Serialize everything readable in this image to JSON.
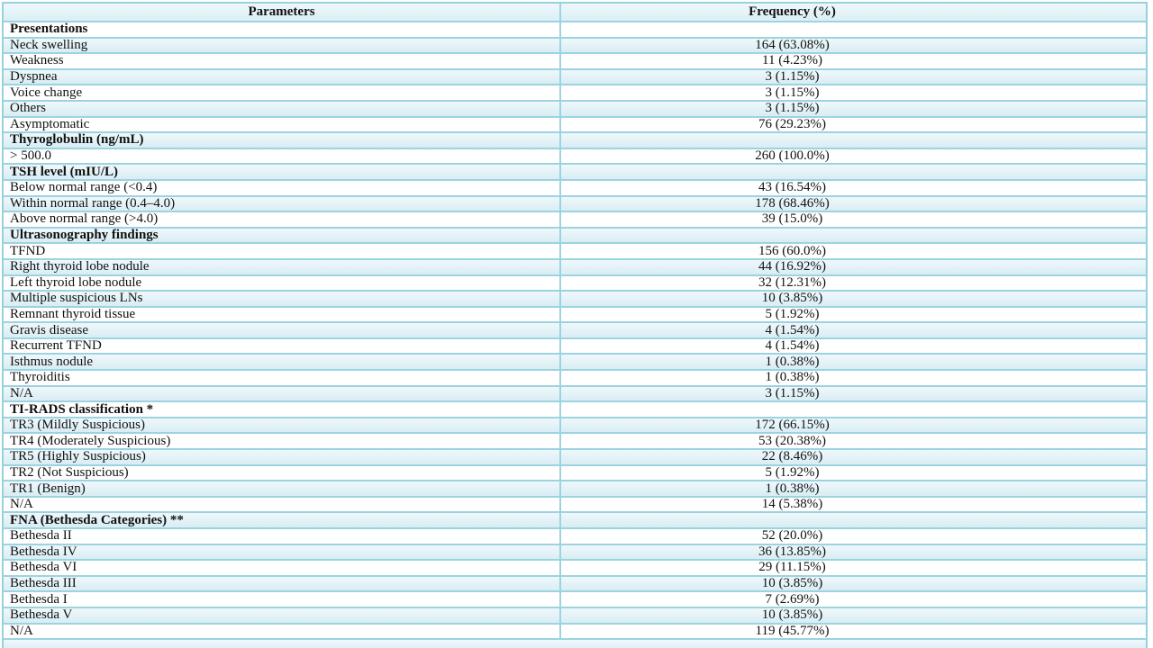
{
  "table": {
    "header": {
      "parameters": "Parameters",
      "frequency": "Frequency (%)"
    },
    "rows": [
      {
        "parameter": "Presentations",
        "frequency": "",
        "section": true
      },
      {
        "parameter": "Neck swelling",
        "frequency": "164 (63.08%)",
        "section": false
      },
      {
        "parameter": "Weakness",
        "frequency": "11 (4.23%)",
        "section": false
      },
      {
        "parameter": "Dyspnea",
        "frequency": "3 (1.15%)",
        "section": false
      },
      {
        "parameter": "Voice change",
        "frequency": "3 (1.15%)",
        "section": false
      },
      {
        "parameter": "Others",
        "frequency": "3 (1.15%)",
        "section": false
      },
      {
        "parameter": "Asymptomatic",
        "frequency": "76 (29.23%)",
        "section": false
      },
      {
        "parameter": "Thyroglobulin (ng/mL)",
        "frequency": "",
        "section": true
      },
      {
        "parameter": "> 500.0",
        "frequency": "260 (100.0%)",
        "section": false
      },
      {
        "parameter": "TSH level (mIU/L)",
        "frequency": "",
        "section": true
      },
      {
        "parameter": "Below normal range (<0.4)",
        "frequency": "43 (16.54%)",
        "section": false
      },
      {
        "parameter": "Within normal range (0.4–4.0)",
        "frequency": "178 (68.46%)",
        "section": false
      },
      {
        "parameter": "Above normal range (>4.0)",
        "frequency": "39 (15.0%)",
        "section": false
      },
      {
        "parameter": "Ultrasonography findings",
        "frequency": "",
        "section": true
      },
      {
        "parameter": "TFND",
        "frequency": "156 (60.0%)",
        "section": false
      },
      {
        "parameter": "Right thyroid lobe nodule",
        "frequency": "44 (16.92%)",
        "section": false
      },
      {
        "parameter": "Left thyroid lobe nodule",
        "frequency": "32 (12.31%)",
        "section": false
      },
      {
        "parameter": "Multiple suspicious LNs",
        "frequency": "10 (3.85%)",
        "section": false
      },
      {
        "parameter": "Remnant thyroid tissue",
        "frequency": "5 (1.92%)",
        "section": false
      },
      {
        "parameter": "Gravis disease",
        "frequency": "4 (1.54%)",
        "section": false
      },
      {
        "parameter": "Recurrent TFND",
        "frequency": "4 (1.54%)",
        "section": false
      },
      {
        "parameter": "Isthmus nodule",
        "frequency": "1 (0.38%)",
        "section": false
      },
      {
        "parameter": "Thyroiditis",
        "frequency": "1 (0.38%)",
        "section": false
      },
      {
        "parameter": "N/A",
        "frequency": "3 (1.15%)",
        "section": false
      },
      {
        "parameter": "TI-RADS classification *",
        "frequency": "",
        "section": true
      },
      {
        "parameter": "TR3 (Mildly Suspicious)",
        "frequency": "172 (66.15%)",
        "section": false
      },
      {
        "parameter": "TR4 (Moderately Suspicious)",
        "frequency": "53 (20.38%)",
        "section": false
      },
      {
        "parameter": "TR5 (Highly Suspicious)",
        "frequency": "22 (8.46%)",
        "section": false
      },
      {
        "parameter": "TR2 (Not Suspicious)",
        "frequency": "5 (1.92%)",
        "section": false
      },
      {
        "parameter": "TR1 (Benign)",
        "frequency": "1 (0.38%)",
        "section": false
      },
      {
        "parameter": "N/A",
        "frequency": "14 (5.38%)",
        "section": false
      },
      {
        "parameter": "FNA (Bethesda Categories) **",
        "frequency": "",
        "section": true
      },
      {
        "parameter": "Bethesda II",
        "frequency": "52 (20.0%)",
        "section": false
      },
      {
        "parameter": "Bethesda IV",
        "frequency": "36 (13.85%)",
        "section": false
      },
      {
        "parameter": "Bethesda VI",
        "frequency": "29 (11.15%)",
        "section": false
      },
      {
        "parameter": "Bethesda III",
        "frequency": "10 (3.85%)",
        "section": false
      },
      {
        "parameter": "Bethesda I",
        "frequency": "7 (2.69%)",
        "section": false
      },
      {
        "parameter": "Bethesda V",
        "frequency": "10 (3.85%)",
        "section": false
      },
      {
        "parameter": "N/A",
        "frequency": "119 (45.77%)",
        "section": false
      }
    ]
  },
  "colors": {
    "grid_line": "#9bd4e0",
    "row_tint": "#e3f1f7",
    "row_plain": "#ffffff",
    "text": "#111111"
  }
}
